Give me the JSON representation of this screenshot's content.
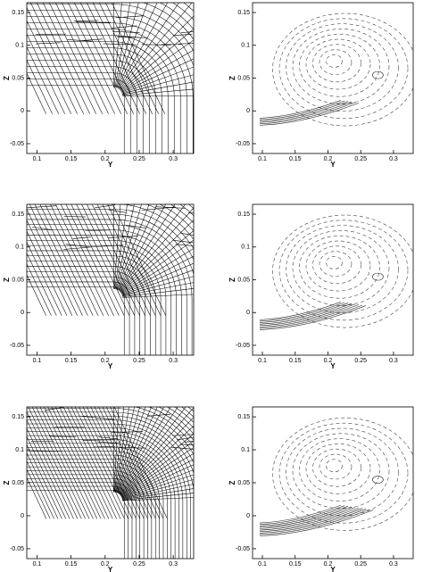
{
  "chart_data": [
    {
      "type": "mesh",
      "xlabel": "Y",
      "ylabel": "Z",
      "xlim": [
        0.085,
        0.33
      ],
      "ylim": [
        -0.065,
        0.165
      ],
      "xticks": [
        0.1,
        0.15,
        0.2,
        0.25,
        0.3
      ],
      "yticks": [
        -0.05,
        0,
        0.05,
        0.1,
        0.15
      ]
    },
    {
      "type": "contour",
      "xlabel": "Y",
      "ylabel": "Z",
      "xlim": [
        0.085,
        0.33
      ],
      "ylim": [
        -0.065,
        0.165
      ],
      "xticks": [
        0.1,
        0.15,
        0.2,
        0.25,
        0.3
      ],
      "yticks": [
        -0.05,
        0,
        0.05,
        0.1,
        0.15
      ]
    },
    {
      "type": "mesh",
      "xlabel": "Y",
      "ylabel": "Z",
      "xlim": [
        0.085,
        0.33
      ],
      "ylim": [
        -0.065,
        0.165
      ],
      "xticks": [
        0.1,
        0.15,
        0.2,
        0.25,
        0.3
      ],
      "yticks": [
        -0.05,
        0,
        0.05,
        0.1,
        0.15
      ]
    },
    {
      "type": "contour",
      "xlabel": "Y",
      "ylabel": "Z",
      "xlim": [
        0.085,
        0.33
      ],
      "ylim": [
        -0.065,
        0.165
      ],
      "xticks": [
        0.1,
        0.15,
        0.2,
        0.25,
        0.3
      ],
      "yticks": [
        -0.05,
        0,
        0.05,
        0.1,
        0.15
      ]
    },
    {
      "type": "mesh",
      "xlabel": "Y",
      "ylabel": "Z",
      "xlim": [
        0.085,
        0.33
      ],
      "ylim": [
        -0.065,
        0.165
      ],
      "xticks": [
        0.1,
        0.15,
        0.2,
        0.25,
        0.3
      ],
      "yticks": [
        -0.05,
        0,
        0.05,
        0.1,
        0.15
      ]
    },
    {
      "type": "contour",
      "xlabel": "Y",
      "ylabel": "Z",
      "xlim": [
        0.085,
        0.33
      ],
      "ylim": [
        -0.065,
        0.165
      ],
      "xticks": [
        0.1,
        0.15,
        0.2,
        0.25,
        0.3
      ],
      "yticks": [
        -0.05,
        0,
        0.05,
        0.1,
        0.15
      ]
    }
  ]
}
